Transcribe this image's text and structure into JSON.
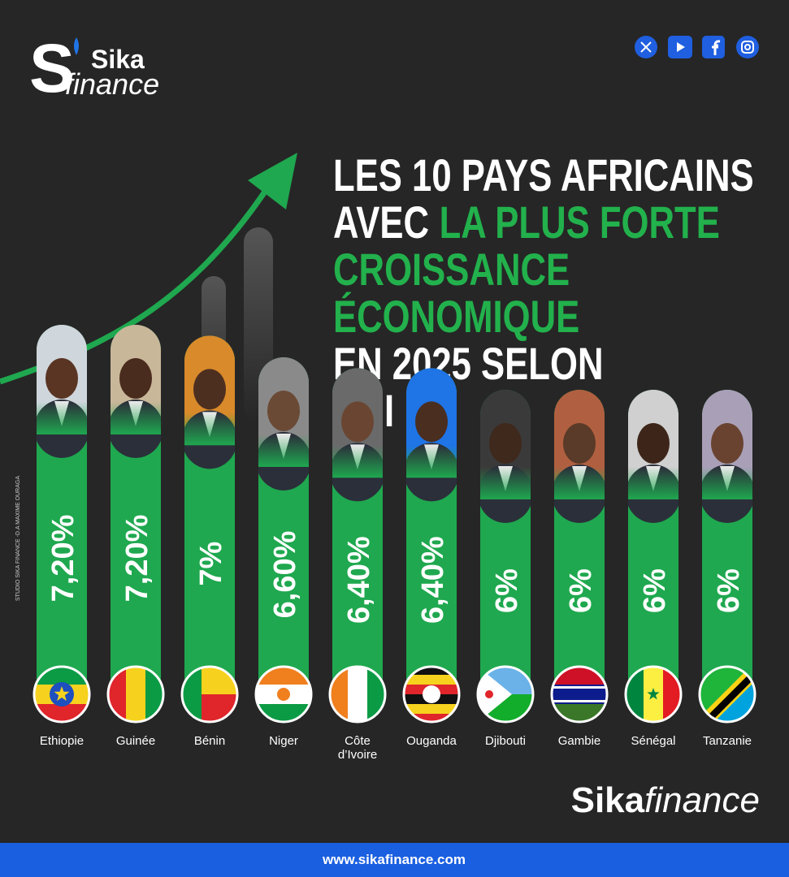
{
  "logo": {
    "letter": "S",
    "line1": "Sika",
    "line2": "finance"
  },
  "credit": "STUDIO SIKA FINANCE -D.A MAXIME OURAGA",
  "chart_data": {
    "type": "bar",
    "title_lines": [
      [
        {
          "text": "LES 10 PAYS AFRICAINS",
          "highlight": false
        }
      ],
      [
        {
          "text": "AVEC",
          "highlight": false
        },
        {
          "text": "LA PLUS FORTE",
          "highlight": true
        }
      ],
      [
        {
          "text": "CROISSANCE",
          "highlight": true
        }
      ],
      [
        {
          "text": "ÉCONOMIQUE",
          "highlight": true
        }
      ],
      [
        {
          "text": "EN 2025 SELON",
          "highlight": false
        }
      ],
      [
        {
          "text": "FMI",
          "highlight": false
        }
      ]
    ],
    "categories": [
      "Ethiopie",
      "Guinée",
      "Bénin",
      "Niger",
      "Côte d’Ivoire",
      "Ouganda",
      "Djibouti",
      "Gambie",
      "Sénégal",
      "Tanzanie"
    ],
    "values": [
      7.2,
      7.2,
      7,
      6.6,
      6.4,
      6.4,
      6,
      6,
      6,
      6
    ],
    "value_labels": [
      "7,20%",
      "7,20%",
      "7%",
      "6,60%",
      "6,40%",
      "6,40%",
      "6%",
      "6%",
      "6%",
      "6%"
    ],
    "color": "#1fa84f",
    "highlight_color": "#22b14c"
  },
  "brand": {
    "bold": "Sika",
    "light": "finance"
  },
  "footer": "www.sikafinance.com"
}
